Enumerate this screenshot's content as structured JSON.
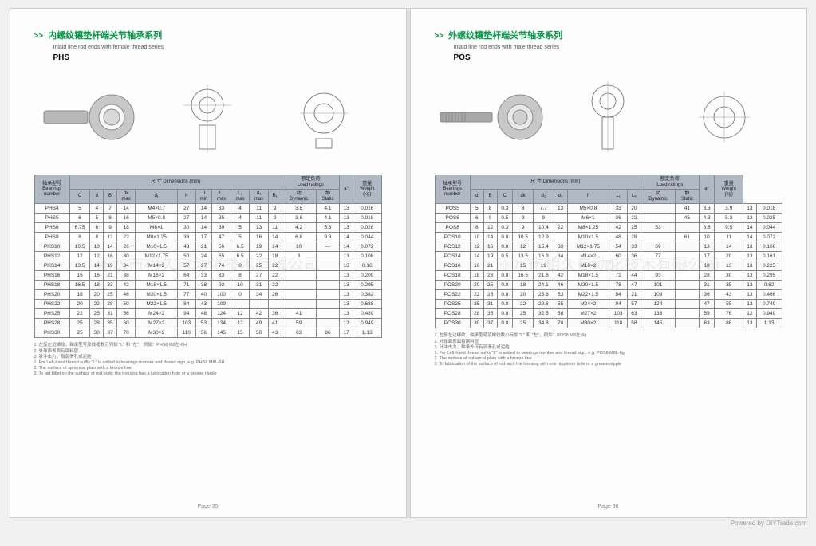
{
  "colors": {
    "accent": "#009944",
    "header_bg": "#b0b8c4",
    "border": "#888888"
  },
  "watermark": "丽水市相久自动化技术有限公司",
  "footer_credit": "Powered by DIYTrade.com",
  "left_page": {
    "title_cn": "内螺纹镶垫杆端关节轴承系列",
    "title_en": "Inlaid line rod ends with female thread series",
    "series": "PHS",
    "page_num": "Page 35",
    "table_header_groups": {
      "bearing_label": "轴承型号\nBearings\nnumber",
      "dimensions_label": "尺 寸 Dimensions (mm)",
      "load_label": "额定负荷\nLoad ratings",
      "angle_label": "a°",
      "weight_label": "重量\nWeight\n(kg)"
    },
    "dim_cols": [
      "C",
      "d",
      "B",
      "dk\nmax",
      "d₁",
      "h",
      "J\nmin",
      "L₁\nmax",
      "L₂\nmax",
      "d₃\nmax",
      "B₁"
    ],
    "load_cols": [
      "动\nDynamic",
      "静\nStatic"
    ],
    "rows": [
      [
        "PHS4",
        "5",
        "4",
        "7",
        "14",
        "M4×0.7",
        "27",
        "14",
        "33",
        "4",
        "11",
        "9",
        "3.8",
        "4.1",
        "13",
        "0.016"
      ],
      [
        "PHS5",
        "6",
        "5",
        "8",
        "16",
        "M5×0.8",
        "27",
        "14",
        "35",
        "4",
        "11",
        "9",
        "3.8",
        "4.1",
        "13",
        "0.018"
      ],
      [
        "PHS6",
        "6.75",
        "6",
        "9",
        "18",
        "M6×1",
        "30",
        "14",
        "39",
        "5",
        "13",
        "11",
        "4.2",
        "5.3",
        "13",
        "0.026"
      ],
      [
        "PHS8",
        "8",
        "8",
        "12",
        "22",
        "M8×1.25",
        "36",
        "17",
        "47",
        "5",
        "16",
        "14",
        "6.8",
        "9.3",
        "14",
        "0.044"
      ],
      [
        "PHS10",
        "10.5",
        "10",
        "14",
        "26",
        "M10×1.5",
        "43",
        "21",
        "56",
        "6.5",
        "19",
        "14",
        "10",
        "---",
        "14",
        "0.072"
      ],
      [
        "PHS12",
        "12",
        "12",
        "16",
        "30",
        "M12×1.75",
        "50",
        "24",
        "65",
        "6.5",
        "22",
        "18",
        "3",
        "",
        "13",
        "0.108"
      ],
      [
        "PHS14",
        "13.5",
        "14",
        "19",
        "34",
        "M14×2",
        "57",
        "27",
        "74",
        "8",
        "25",
        "22",
        "",
        "",
        "13",
        "0.16"
      ],
      [
        "PHS16",
        "15",
        "16",
        "21",
        "38",
        "M16×2",
        "64",
        "33",
        "83",
        "8",
        "27",
        "22",
        "",
        "",
        "13",
        "0.209"
      ],
      [
        "PHS18",
        "16.5",
        "18",
        "23",
        "42",
        "M18×1.5",
        "71",
        "38",
        "92",
        "10",
        "31",
        "22",
        "",
        "",
        "13",
        "0.295"
      ],
      [
        "PHS20",
        "18",
        "20",
        "25",
        "46",
        "M20×1.5",
        "77",
        "40",
        "100",
        "0",
        "34",
        "26",
        "",
        "",
        "13",
        "0.382"
      ],
      [
        "PHS22",
        "20",
        "22",
        "28",
        "50",
        "M22×1.5",
        "84",
        "43",
        "109",
        "",
        "",
        "",
        "",
        "",
        "13",
        "0.688"
      ],
      [
        "PHS25",
        "22",
        "25",
        "31",
        "56",
        "M24×2",
        "94",
        "48",
        "124",
        "12",
        "42",
        "36",
        "41",
        "",
        "13",
        "0.489"
      ],
      [
        "PHS28",
        "25",
        "28",
        "35",
        "60",
        "M27×2",
        "103",
        "53",
        "134",
        "12",
        "49",
        "41",
        "59",
        "",
        "12",
        "0.949"
      ],
      [
        "PHS30",
        "25",
        "30",
        "37",
        "70",
        "M30×2",
        "110",
        "56",
        "145",
        "15",
        "50",
        "43",
        "63",
        "86",
        "17",
        "1.13"
      ]
    ],
    "notes": [
      "1. 左旋左边螺纹，轴承型号及线缆数示列如 \"L\" 和 \"左\"，例如：PHS8 M8左-6H",
      "2. 外球面表面有铜料层",
      "3. 针冲击力，有润滑孔或泥结",
      "1. For Left-hand thread suffix \"L\" is added to bearings number and thread sign, e.g. PHS8 M8L-6H",
      "2. The surface of spherical plain with a bronze line",
      "3. To aid billet on the surface of rod body, the housing has a lubrication hole or a grease nipple"
    ]
  },
  "right_page": {
    "title_cn": "外螺纹镶垫杆端关节轴承系列",
    "title_en": "Inlaid line rod ends with male thread series",
    "series": "POS",
    "page_num": "Page 36",
    "table_header_groups": {
      "bearing_label": "轴承型号\nBearings\nnumber",
      "dimensions_label": "尺 寸 Dimensions (mm)",
      "load_label": "额定负荷\nLoad ratings",
      "angle_label": "a°",
      "weight_label": "重量\nWeight\n(kg)"
    },
    "dim_cols": [
      "d",
      "B",
      "C",
      "dk",
      "d₂",
      "d₃",
      "h",
      "L₁"
    ],
    "load_cols": [
      "动\nDynamic",
      "静\nStatic"
    ],
    "extra_cols": [
      "L₆"
    ],
    "rows": [
      [
        "POS5",
        "5",
        "8",
        "0.3",
        "8",
        "7.7",
        "13",
        "M5×0.8",
        "33",
        "20",
        "",
        "41",
        "3.3",
        "3.9",
        "13",
        "0.018"
      ],
      [
        "POS6",
        "6",
        "9",
        "0.5",
        "9",
        "9",
        "",
        "M6×1",
        "36",
        "22",
        "",
        "45",
        "4.3",
        "5.3",
        "13",
        "0.025"
      ],
      [
        "POS8",
        "8",
        "12",
        "0.3",
        "9",
        "10.4",
        "22",
        "M8×1.25",
        "42",
        "25",
        "53",
        "",
        "6.8",
        "9.5",
        "14",
        "0.044"
      ],
      [
        "POS10",
        "10",
        "14",
        "0.8",
        "10.5",
        "12.9",
        "",
        "M10×1.5",
        "48",
        "28",
        "",
        "61",
        "10",
        "11",
        "14",
        "0.072"
      ],
      [
        "POS12",
        "12",
        "16",
        "0.8",
        "12",
        "15.4",
        "33",
        "M12×1.75",
        "54",
        "33",
        "69",
        "",
        "13",
        "14",
        "13",
        "0.108"
      ],
      [
        "POS14",
        "14",
        "19",
        "0.5",
        "13.5",
        "16.9",
        "34",
        "M14×2",
        "60",
        "36",
        "77",
        "",
        "17",
        "20",
        "13",
        "0.161"
      ],
      [
        "POS16",
        "16",
        "21",
        "",
        "15",
        "19",
        "",
        "M16×2",
        "",
        "",
        "",
        "",
        "18",
        "13",
        "13",
        "0.225"
      ],
      [
        "POS18",
        "18",
        "23",
        "0.8",
        "16.5",
        "21.6",
        "42",
        "M18×1.5",
        "72",
        "44",
        "93",
        "",
        "28",
        "30",
        "13",
        "0.295"
      ],
      [
        "POS20",
        "20",
        "25",
        "0.8",
        "18",
        "24.1",
        "46",
        "M20×1.5",
        "78",
        "47",
        "101",
        "",
        "31",
        "35",
        "13",
        "0.62"
      ],
      [
        "POS22",
        "22",
        "28",
        "0.8",
        "20",
        "25.8",
        "53",
        "M22×1.5",
        "84",
        "21",
        "109",
        "",
        "36",
        "43",
        "13",
        "0.466"
      ],
      [
        "POS25",
        "25",
        "31",
        "0.8",
        "22",
        "29.6",
        "55",
        "M24×2",
        "94",
        "57",
        "124",
        "",
        "47",
        "55",
        "13",
        "0.749"
      ],
      [
        "POS28",
        "28",
        "35",
        "0.8",
        "25",
        "32.5",
        "58",
        "M27×2",
        "103",
        "63",
        "133",
        "",
        "59",
        "76",
        "12",
        "0.949"
      ],
      [
        "POS30",
        "30",
        "37",
        "0.8",
        "25",
        "34.8",
        "70",
        "M30×2",
        "110",
        "58",
        "145",
        "",
        "63",
        "86",
        "13",
        "1.13"
      ]
    ],
    "notes": [
      "1. 左旋左边螺纹，轴承型号及螺线数小标加 \"L\" 和 \"左\"，例如：POS8 M8左-6g",
      "2. 外球面表面有铜料层",
      "3. 针冲击力，轴承外环有润滑孔或泥结",
      "1. For Left-hand thread suffix \"L\" is added to bearings number and thread sign, e.g. POS8 M8L-6g",
      "2. The surface of spherical plain with a bronze line",
      "3. To lubrication of the surface of rod arch the housing with one nipple on hole or a grease nipple"
    ]
  }
}
